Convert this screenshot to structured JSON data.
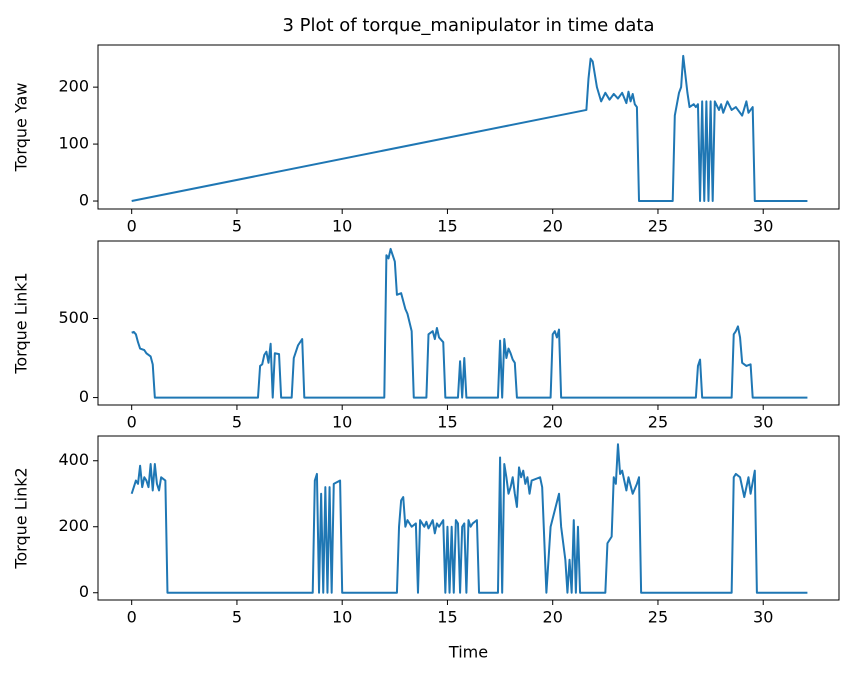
{
  "chart_data": [
    {
      "type": "line",
      "title": "3 Plot of torque_manipulator in time data",
      "ylabel": "Torque Yaw",
      "x": [
        0,
        21.6,
        21.7,
        21.8,
        21.9,
        22.1,
        22.3,
        22.5,
        22.7,
        22.9,
        23.1,
        23.3,
        23.5,
        23.6,
        23.7,
        23.8,
        23.9,
        24.0,
        24.1,
        25.7,
        25.8,
        26.0,
        26.1,
        26.2,
        26.4,
        26.5,
        26.7,
        26.8,
        26.9,
        27.0,
        27.1,
        27.2,
        27.3,
        27.4,
        27.5,
        27.6,
        27.7,
        27.9,
        28.0,
        28.1,
        28.3,
        28.5,
        28.7,
        28.8,
        29.0,
        29.2,
        29.3,
        29.5,
        29.6,
        32.1
      ],
      "series": [
        {
          "color": "#1f77b4",
          "values": [
            0,
            160,
            215,
            250,
            245,
            200,
            175,
            190,
            178,
            188,
            180,
            190,
            172,
            192,
            175,
            188,
            170,
            165,
            0,
            0,
            150,
            190,
            200,
            255,
            190,
            165,
            170,
            165,
            170,
            0,
            175,
            0,
            175,
            0,
            175,
            0,
            175,
            160,
            170,
            155,
            175,
            160,
            165,
            160,
            150,
            175,
            155,
            165,
            0,
            0
          ]
        }
      ],
      "xlim": [
        -1.6,
        33.6
      ],
      "xticks": [
        0,
        5,
        10,
        15,
        20,
        25,
        30
      ],
      "ylim": [
        -14,
        274
      ],
      "yticks": [
        0,
        100,
        200
      ],
      "grid": false
    },
    {
      "type": "line",
      "ylabel": "Torque Link1",
      "x": [
        0,
        0.1,
        0.2,
        0.3,
        0.4,
        0.6,
        0.7,
        0.9,
        1.0,
        1.1,
        6.0,
        6.1,
        6.2,
        6.3,
        6.4,
        6.5,
        6.6,
        6.7,
        6.8,
        7.0,
        7.1,
        7.6,
        7.7,
        7.9,
        8.1,
        8.2,
        12.0,
        12.1,
        12.2,
        12.3,
        12.5,
        12.6,
        12.8,
        13.0,
        13.1,
        13.3,
        13.4,
        14.0,
        14.1,
        14.3,
        14.4,
        14.5,
        14.6,
        14.8,
        14.9,
        15.5,
        15.6,
        15.7,
        15.8,
        15.9,
        17.4,
        17.5,
        17.6,
        17.7,
        17.8,
        17.9,
        18.0,
        18.1,
        18.2,
        18.3,
        19.9,
        20.0,
        20.1,
        20.2,
        20.3,
        20.4,
        26.8,
        26.9,
        27.0,
        27.1,
        28.5,
        28.6,
        28.7,
        28.8,
        28.9,
        29.0,
        29.2,
        29.4,
        29.5,
        32.1
      ],
      "series": [
        {
          "color": "#1f77b4",
          "values": [
            410,
            415,
            400,
            350,
            310,
            300,
            280,
            260,
            210,
            0,
            0,
            200,
            210,
            270,
            290,
            220,
            340,
            0,
            280,
            275,
            0,
            0,
            250,
            330,
            370,
            0,
            0,
            900,
            880,
            940,
            860,
            650,
            660,
            560,
            530,
            420,
            0,
            0,
            400,
            420,
            370,
            440,
            380,
            350,
            0,
            0,
            230,
            0,
            250,
            0,
            0,
            360,
            0,
            370,
            250,
            310,
            280,
            240,
            220,
            0,
            0,
            400,
            420,
            380,
            430,
            0,
            0,
            200,
            240,
            0,
            0,
            400,
            420,
            450,
            380,
            220,
            200,
            210,
            0,
            0
          ]
        }
      ],
      "xlim": [
        -1.6,
        33.6
      ],
      "xticks": [
        0,
        5,
        10,
        15,
        20,
        25,
        30
      ],
      "ylim": [
        -47,
        990
      ],
      "yticks": [
        0,
        500
      ],
      "grid": false
    },
    {
      "type": "line",
      "ylabel": "Torque Link2",
      "xlabel": "Time",
      "x": [
        0,
        0.1,
        0.2,
        0.3,
        0.4,
        0.5,
        0.6,
        0.7,
        0.8,
        0.9,
        1.0,
        1.1,
        1.2,
        1.3,
        1.4,
        1.6,
        1.7,
        8.6,
        8.7,
        8.8,
        8.9,
        9.0,
        9.1,
        9.2,
        9.3,
        9.4,
        9.5,
        9.6,
        9.9,
        10.0,
        12.6,
        12.7,
        12.8,
        12.9,
        13.0,
        13.1,
        13.3,
        13.5,
        13.6,
        13.7,
        13.8,
        13.9,
        14.0,
        14.1,
        14.3,
        14.4,
        14.5,
        14.6,
        14.8,
        14.9,
        15.0,
        15.1,
        15.2,
        15.3,
        15.4,
        15.5,
        15.6,
        15.7,
        15.8,
        15.9,
        16.0,
        16.1,
        16.2,
        16.4,
        16.5,
        17.4,
        17.5,
        17.6,
        17.7,
        17.8,
        17.9,
        18.0,
        18.1,
        18.2,
        18.3,
        18.4,
        18.5,
        18.6,
        18.7,
        18.8,
        18.9,
        19.0,
        19.4,
        19.5,
        19.7,
        19.9,
        20.1,
        20.3,
        20.4,
        20.6,
        20.7,
        20.8,
        20.9,
        21.0,
        21.1,
        21.2,
        21.3,
        22.5,
        22.6,
        22.8,
        22.9,
        23.0,
        23.1,
        23.2,
        23.3,
        23.5,
        23.6,
        23.8,
        24.0,
        24.1,
        24.2,
        28.5,
        28.6,
        28.7,
        28.9,
        29.1,
        29.2,
        29.3,
        29.4,
        29.6,
        29.7,
        32.1
      ],
      "series": [
        {
          "color": "#1f77b4",
          "values": [
            300,
            320,
            340,
            330,
            385,
            320,
            350,
            340,
            320,
            390,
            310,
            390,
            330,
            310,
            350,
            340,
            0,
            0,
            340,
            360,
            0,
            300,
            0,
            320,
            0,
            320,
            0,
            330,
            340,
            0,
            0,
            200,
            280,
            290,
            200,
            220,
            200,
            210,
            0,
            220,
            210,
            200,
            215,
            195,
            220,
            180,
            210,
            200,
            220,
            0,
            200,
            0,
            200,
            0,
            220,
            210,
            0,
            200,
            210,
            0,
            220,
            200,
            210,
            220,
            0,
            0,
            410,
            0,
            390,
            350,
            300,
            320,
            350,
            300,
            260,
            380,
            350,
            370,
            330,
            350,
            300,
            340,
            350,
            320,
            0,
            200,
            250,
            300,
            200,
            100,
            0,
            100,
            0,
            220,
            0,
            200,
            0,
            0,
            150,
            170,
            350,
            330,
            450,
            360,
            370,
            310,
            350,
            300,
            330,
            350,
            0,
            0,
            350,
            360,
            350,
            290,
            320,
            350,
            300,
            370,
            0,
            0
          ]
        }
      ],
      "xlim": [
        -1.6,
        33.6
      ],
      "xticks": [
        0,
        5,
        10,
        15,
        20,
        25,
        30
      ],
      "ylim": [
        -22,
        475
      ],
      "yticks": [
        0,
        200,
        400
      ],
      "grid": false
    }
  ]
}
